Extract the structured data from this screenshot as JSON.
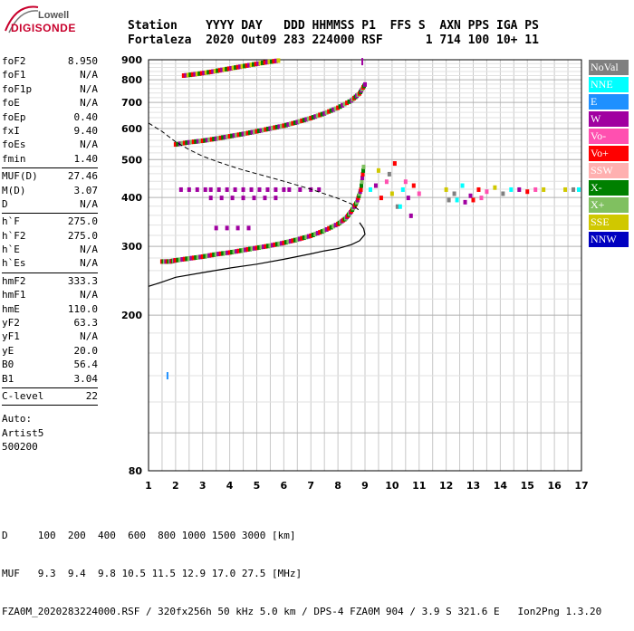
{
  "logo": {
    "brand": "Lowell",
    "name": "DIGISONDE"
  },
  "header": {
    "line1": "Station    YYYY DAY   DDD HHMMSS P1  FFS S  AXN PPS IGA PS",
    "line2": "Fortaleza  2020 Out09 283 224000 RSF      1 714 100 10+ 11"
  },
  "params": {
    "group1": [
      {
        "label": "foF2",
        "value": "8.950"
      },
      {
        "label": "foF1",
        "value": "N/A"
      },
      {
        "label": "foF1p",
        "value": "N/A"
      },
      {
        "label": "foE",
        "value": "N/A"
      },
      {
        "label": "foEp",
        "value": "0.40"
      },
      {
        "label": "fxI",
        "value": "9.40"
      },
      {
        "label": "foEs",
        "value": "N/A"
      },
      {
        "label": "fmin",
        "value": "1.40"
      }
    ],
    "group2": [
      {
        "label": "MUF(D)",
        "value": "27.46"
      },
      {
        "label": "M(D)",
        "value": "3.07"
      },
      {
        "label": "D",
        "value": "N/A"
      }
    ],
    "group3": [
      {
        "label": "h`F",
        "value": "275.0"
      },
      {
        "label": "h`F2",
        "value": "275.0"
      },
      {
        "label": "h`E",
        "value": "N/A"
      },
      {
        "label": "h`Es",
        "value": "N/A"
      }
    ],
    "group4": [
      {
        "label": "hmF2",
        "value": "333.3"
      },
      {
        "label": "hmF1",
        "value": "N/A"
      },
      {
        "label": "hmE",
        "value": "110.0"
      },
      {
        "label": "yF2",
        "value": "63.3"
      },
      {
        "label": "yF1",
        "value": "N/A"
      },
      {
        "label": "yE",
        "value": "20.0"
      },
      {
        "label": "B0",
        "value": "56.4"
      },
      {
        "label": "B1",
        "value": "3.04"
      }
    ],
    "group5": [
      {
        "label": "C-level",
        "value": "22"
      }
    ],
    "autoscale": [
      "Auto:",
      "Artist5",
      "500200"
    ]
  },
  "legend": [
    {
      "label": "NoVal",
      "color": "#808080"
    },
    {
      "label": "NNE",
      "color": "#00ffff"
    },
    {
      "label": "E",
      "color": "#1e90ff"
    },
    {
      "label": "W",
      "color": "#a000a0"
    },
    {
      "label": "Vo-",
      "color": "#ff50b0"
    },
    {
      "label": "Vo+",
      "color": "#ff0000"
    },
    {
      "label": "SSW",
      "color": "#ffb0b0"
    },
    {
      "label": "X-",
      "color": "#008000"
    },
    {
      "label": "X+",
      "color": "#80c060"
    },
    {
      "label": "SSE",
      "color": "#d0c800"
    },
    {
      "label": "NNW",
      "color": "#0000c0"
    }
  ],
  "bottom": {
    "line1": "D     100  200  400  600  800 1000 1500 3000 [km]",
    "line2": "MUF   9.3  9.4  9.8 10.5 11.5 12.9 17.0 27.5 [MHz]",
    "line3": "FZA0M_2020283224000.RSF / 320fx256h 50 kHz 5.0 km / DPS-4 FZA0M 904 / 3.9 S 321.6 E   Ion2Png 1.3.20"
  },
  "chart_data": {
    "type": "scatter",
    "title": "",
    "xlabel": "",
    "ylabel": "",
    "xlim": [
      1,
      17
    ],
    "ylim": [
      80,
      900
    ],
    "y_scale": "log",
    "x_ticks": [
      1,
      2,
      3,
      4,
      5,
      6,
      7,
      8,
      9,
      10,
      11,
      12,
      13,
      14,
      15,
      16,
      17
    ],
    "y_ticks": [
      80,
      200,
      300,
      400,
      500,
      600,
      700,
      800,
      900
    ],
    "traces": [
      {
        "name": "F-trace 1st hop",
        "type": "points",
        "x": [
          1.5,
          1.8,
          2.0,
          2.5,
          3.0,
          3.5,
          4.0,
          4.5,
          5.0,
          5.5,
          6.0,
          6.5,
          7.0,
          7.5,
          8.0,
          8.3,
          8.5,
          8.7,
          8.85,
          8.95
        ],
        "y": [
          275,
          275,
          277,
          280,
          283,
          287,
          290,
          294,
          298,
          302,
          307,
          313,
          320,
          330,
          343,
          355,
          370,
          390,
          420,
          480
        ],
        "colors": [
          "#ff0000",
          "#008000",
          "#80c060",
          "#a000a0"
        ]
      },
      {
        "name": "F-trace 2nd hop",
        "type": "points",
        "x": [
          2.0,
          2.5,
          3.0,
          3.5,
          4.0,
          4.5,
          5.0,
          5.5,
          6.0,
          6.5,
          7.0,
          7.5,
          8.0,
          8.5,
          8.8,
          9.0
        ],
        "y": [
          548,
          555,
          560,
          567,
          575,
          583,
          592,
          602,
          612,
          625,
          640,
          658,
          680,
          710,
          740,
          780
        ],
        "colors": [
          "#ff0000",
          "#008000",
          "#a000a0",
          "#80c060"
        ]
      },
      {
        "name": "F-trace 3rd hop",
        "type": "points",
        "x": [
          2.3,
          2.8,
          3.3,
          3.8,
          4.3,
          4.8,
          5.3,
          5.8
        ],
        "y": [
          822,
          830,
          840,
          852,
          864,
          876,
          888,
          898
        ],
        "colors": [
          "#ff0000",
          "#a000a0",
          "#d0c800",
          "#008000"
        ]
      },
      {
        "name": "Spread (W)",
        "type": "points",
        "x": [
          3.3,
          3.6,
          3.9,
          4.2,
          4.5,
          4.8,
          5.1,
          5.4,
          5.7,
          6.0,
          3.3,
          3.7,
          4.1,
          4.5,
          4.9,
          5.3,
          5.7,
          6.2,
          6.6,
          7.0,
          7.3,
          2.2,
          2.5,
          2.8,
          3.1,
          3.5,
          3.9,
          4.3,
          4.7
        ],
        "y": [
          420,
          420,
          420,
          420,
          420,
          420,
          420,
          420,
          420,
          420,
          400,
          400,
          400,
          400,
          400,
          400,
          400,
          420,
          420,
          420,
          420,
          420,
          420,
          420,
          420,
          335,
          335,
          335,
          335
        ],
        "colors": [
          "#a000a0"
        ]
      },
      {
        "name": "Spread F beyond foF2",
        "type": "points",
        "x": [
          9.2,
          9.4,
          9.6,
          9.8,
          10.0,
          10.2,
          10.4,
          10.6,
          10.8,
          11.0,
          9.5,
          9.9,
          10.3,
          10.7,
          10.1,
          10.5,
          12.0,
          12.3,
          12.6,
          12.9,
          13.2,
          13.5,
          13.8,
          14.1,
          14.4,
          14.7,
          15.0,
          15.3,
          15.6,
          12.1,
          12.4,
          12.7,
          13.0,
          13.3,
          16.4,
          16.7,
          16.9
        ],
        "y": [
          420,
          430,
          400,
          440,
          410,
          380,
          420,
          400,
          430,
          410,
          470,
          460,
          380,
          360,
          490,
          440,
          420,
          410,
          430,
          405,
          420,
          415,
          425,
          410,
          420,
          420,
          415,
          420,
          420,
          395,
          395,
          390,
          395,
          400,
          420,
          420,
          420
        ],
        "colors": [
          "#00ffff",
          "#a000a0",
          "#ff0000",
          "#ff50b0",
          "#d0c800",
          "#808080"
        ]
      }
    ],
    "profile": {
      "name": "electron density profile",
      "x": [
        1.0,
        1.5,
        2.0,
        3.0,
        4.0,
        5.0,
        6.0,
        7.0,
        7.5,
        8.0,
        8.5,
        8.8,
        9.0,
        8.95,
        8.8
      ],
      "y": [
        237,
        243,
        250,
        257,
        264,
        270,
        278,
        287,
        292,
        296,
        303,
        310,
        322,
        333,
        345
      ]
    },
    "model": {
      "name": "modelled profile (dashed)",
      "x": [
        1.0,
        1.5,
        2.0,
        2.5,
        3.0,
        3.5,
        4.0,
        4.5,
        5.0,
        6.0,
        7.0,
        8.0,
        8.5,
        8.8
      ],
      "y": [
        620,
        590,
        555,
        530,
        510,
        495,
        482,
        470,
        460,
        440,
        420,
        398,
        385,
        370
      ]
    },
    "isolated_points": [
      {
        "x": 1.7,
        "y": 140,
        "color": "#1e90ff"
      },
      {
        "x": 8.9,
        "y": 890,
        "color": "#a000a0"
      }
    ]
  }
}
